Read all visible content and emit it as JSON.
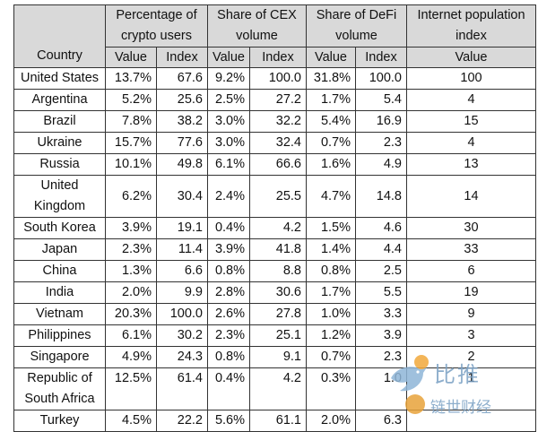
{
  "table": {
    "group_headers": {
      "country": "Country",
      "crypto_users": "Percentage of crypto users",
      "cex": "Share of CEX volume",
      "defi": "Share of DeFi volume",
      "internet": "Internet population index"
    },
    "sub_headers": {
      "value": "Value",
      "index": "Index"
    },
    "rows": [
      {
        "country": "United States",
        "users_value": "13.7%",
        "users_index": "67.6",
        "cex_value": "9.2%",
        "cex_index": "100.0",
        "defi_value": "31.8%",
        "defi_index": "100.0",
        "internet": "100"
      },
      {
        "country": "Argentina",
        "users_value": "5.2%",
        "users_index": "25.6",
        "cex_value": "2.5%",
        "cex_index": "27.2",
        "defi_value": "1.7%",
        "defi_index": "5.4",
        "internet": "4"
      },
      {
        "country": "Brazil",
        "users_value": "7.8%",
        "users_index": "38.2",
        "cex_value": "3.0%",
        "cex_index": "32.2",
        "defi_value": "5.4%",
        "defi_index": "16.9",
        "internet": "15"
      },
      {
        "country": "Ukraine",
        "users_value": "15.7%",
        "users_index": "77.6",
        "cex_value": "3.0%",
        "cex_index": "32.4",
        "defi_value": "0.7%",
        "defi_index": "2.3",
        "internet": "4"
      },
      {
        "country": "Russia",
        "users_value": "10.1%",
        "users_index": "49.8",
        "cex_value": "6.1%",
        "cex_index": "66.6",
        "defi_value": "1.6%",
        "defi_index": "4.9",
        "internet": "13"
      },
      {
        "country": "United Kingdom",
        "users_value": "6.2%",
        "users_index": "30.4",
        "cex_value": "2.4%",
        "cex_index": "25.5",
        "defi_value": "4.7%",
        "defi_index": "14.8",
        "internet": "14"
      },
      {
        "country": "South Korea",
        "users_value": "3.9%",
        "users_index": "19.1",
        "cex_value": "0.4%",
        "cex_index": "4.2",
        "defi_value": "1.5%",
        "defi_index": "4.6",
        "internet": "30"
      },
      {
        "country": "Japan",
        "users_value": "2.3%",
        "users_index": "11.4",
        "cex_value": "3.9%",
        "cex_index": "41.8",
        "defi_value": "1.4%",
        "defi_index": "4.4",
        "internet": "33"
      },
      {
        "country": "China",
        "users_value": "1.3%",
        "users_index": "6.6",
        "cex_value": "0.8%",
        "cex_index": "8.8",
        "defi_value": "0.8%",
        "defi_index": "2.5",
        "internet": "6"
      },
      {
        "country": "India",
        "users_value": "2.0%",
        "users_index": "9.9",
        "cex_value": "2.8%",
        "cex_index": "30.6",
        "defi_value": "1.7%",
        "defi_index": "5.5",
        "internet": "19"
      },
      {
        "country": "Vietnam",
        "users_value": "20.3%",
        "users_index": "100.0",
        "cex_value": "2.6%",
        "cex_index": "27.8",
        "defi_value": "1.0%",
        "defi_index": "3.3",
        "internet": "9"
      },
      {
        "country": "Philippines",
        "users_value": "6.1%",
        "users_index": "30.2",
        "cex_value": "2.3%",
        "cex_index": "25.1",
        "defi_value": "1.2%",
        "defi_index": "3.9",
        "internet": "3"
      },
      {
        "country": "Singapore",
        "users_value": "4.9%",
        "users_index": "24.3",
        "cex_value": "0.8%",
        "cex_index": "9.1",
        "defi_value": "0.7%",
        "defi_index": "2.3",
        "internet": "2"
      },
      {
        "country": "Republic of South Africa",
        "users_value": "12.5%",
        "users_index": "61.4",
        "cex_value": "0.4%",
        "cex_index": "4.2",
        "defi_value": "0.3%",
        "defi_index": "1.0",
        "internet": "1"
      },
      {
        "country": "Turkey",
        "users_value": "4.5%",
        "users_index": "22.2",
        "cex_value": "5.6%",
        "cex_index": "61.1",
        "defi_value": "2.0%",
        "defi_index": "6.3",
        "internet": ""
      }
    ]
  },
  "watermark": {
    "brand": "比推",
    "subtitle": "链世财经",
    "icon": "bird-logo-icon"
  }
}
